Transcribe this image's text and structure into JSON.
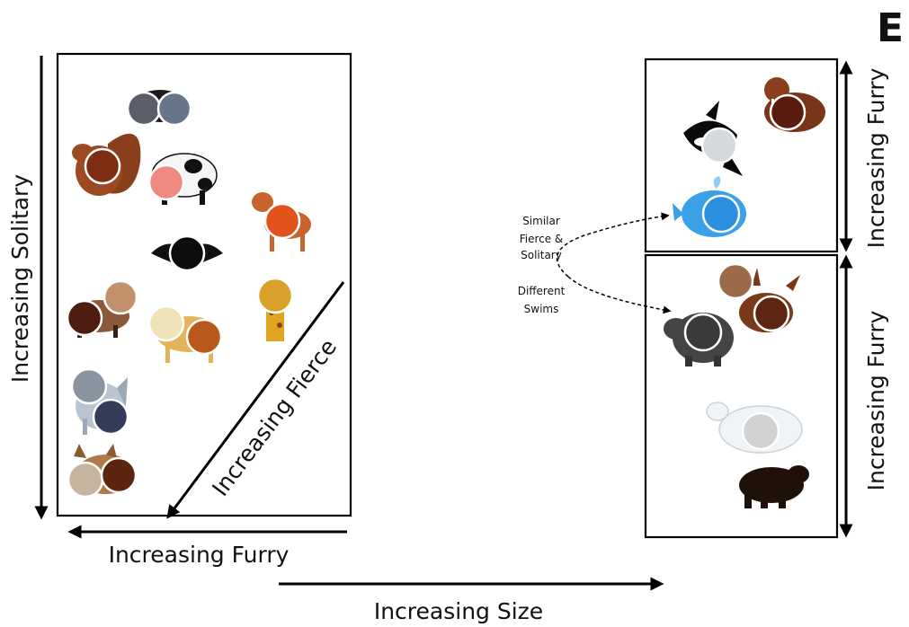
{
  "figure": {
    "panel_letter": "E",
    "x_axis_label": "Increasing Size"
  },
  "left_panel": {
    "vertical_axis_label": "Increasing Solitary",
    "horizontal_axis_label": "Increasing Furry",
    "diagonal_axis_label": "Increasing Fierce",
    "animals": [
      {
        "name": "skunk",
        "dot_colors": [
          "#5a5e68",
          "#66758a"
        ]
      },
      {
        "name": "squirrel",
        "dot_colors": [
          "#7d2e12"
        ]
      },
      {
        "name": "cow",
        "dot_colors": [
          "#f08a80"
        ]
      },
      {
        "name": "deer",
        "dot_colors": [
          "#e2531c"
        ]
      },
      {
        "name": "bat",
        "dot_colors": [
          "#0b0d0c"
        ]
      },
      {
        "name": "giraffe",
        "dot_colors": [
          "#d9a02a"
        ]
      },
      {
        "name": "raccoon",
        "dot_colors": [
          "#c0916a",
          "#4c1d10"
        ]
      },
      {
        "name": "leopard",
        "dot_colors": [
          "#efe3b8",
          "#b8581b"
        ]
      },
      {
        "name": "wolf",
        "dot_colors": [
          "#8a94a0",
          "#353c5a"
        ]
      },
      {
        "name": "bobcat",
        "dot_colors": [
          "#c7b49e",
          "#5c2510"
        ]
      }
    ]
  },
  "right_top_panel": {
    "axis_label": "Increasing Furry",
    "animals": [
      {
        "name": "walrus",
        "dot_colors": [
          "#5a1c0e"
        ]
      },
      {
        "name": "orca",
        "dot_colors": [
          "#d4dadc"
        ]
      },
      {
        "name": "blue-whale",
        "dot_colors": [
          "#2b8fe0"
        ]
      }
    ]
  },
  "right_bottom_panel": {
    "axis_label": "Increasing Furry",
    "animals": [
      {
        "name": "moose",
        "dot_colors": [
          "#9b6a48",
          "#5e2612"
        ]
      },
      {
        "name": "hippo",
        "dot_colors": [
          "#3a3a3a"
        ]
      },
      {
        "name": "polar-bear",
        "dot_colors": [
          "#d2d2d2"
        ]
      },
      {
        "name": "black-bear",
        "dot_colors": []
      }
    ]
  },
  "annotation": {
    "upper_lines": [
      "Similar",
      "Fierce &",
      "Solitary"
    ],
    "lower_lines": [
      "Different",
      "Swims"
    ]
  }
}
